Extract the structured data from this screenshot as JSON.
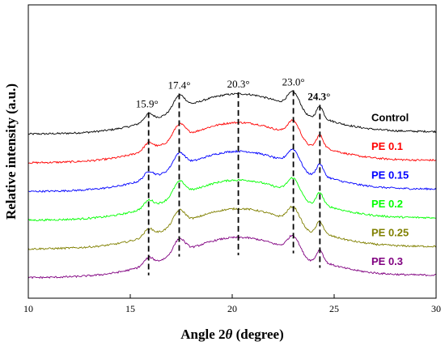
{
  "chart_data": {
    "type": "line",
    "xlabel": {
      "prefix": "Angle 2",
      "symbol": "θ",
      "suffix": " (degree)"
    },
    "ylabel": "Relative intensity (a.u.)",
    "xlim": [
      10,
      30
    ],
    "xticks": [
      "10",
      "15",
      "20",
      "25",
      "30"
    ],
    "grid": false,
    "peaks": [
      {
        "x": 15.9,
        "label": "15.9°",
        "bold": false
      },
      {
        "x": 17.4,
        "label": "17.4°",
        "bold": false
      },
      {
        "x": 20.3,
        "label": "20.3°",
        "bold": false
      },
      {
        "x": 23.0,
        "label": "23.0°",
        "bold": false
      },
      {
        "x": 24.3,
        "label": "24.3°",
        "bold": true
      }
    ],
    "series": [
      {
        "name": "Control",
        "color": "#000000",
        "baseline": 9.2
      },
      {
        "name": "PE 0.1",
        "color": "#ff0000",
        "baseline": 7.8
      },
      {
        "name": "PE 0.15",
        "color": "#0000ff",
        "baseline": 6.4
      },
      {
        "name": "PE 0.2",
        "color": "#00ff00",
        "baseline": 5.0
      },
      {
        "name": "PE 0.25",
        "color": "#808000",
        "baseline": 3.6
      },
      {
        "name": "PE 0.3",
        "color": "#800080",
        "baseline": 2.2
      }
    ]
  }
}
